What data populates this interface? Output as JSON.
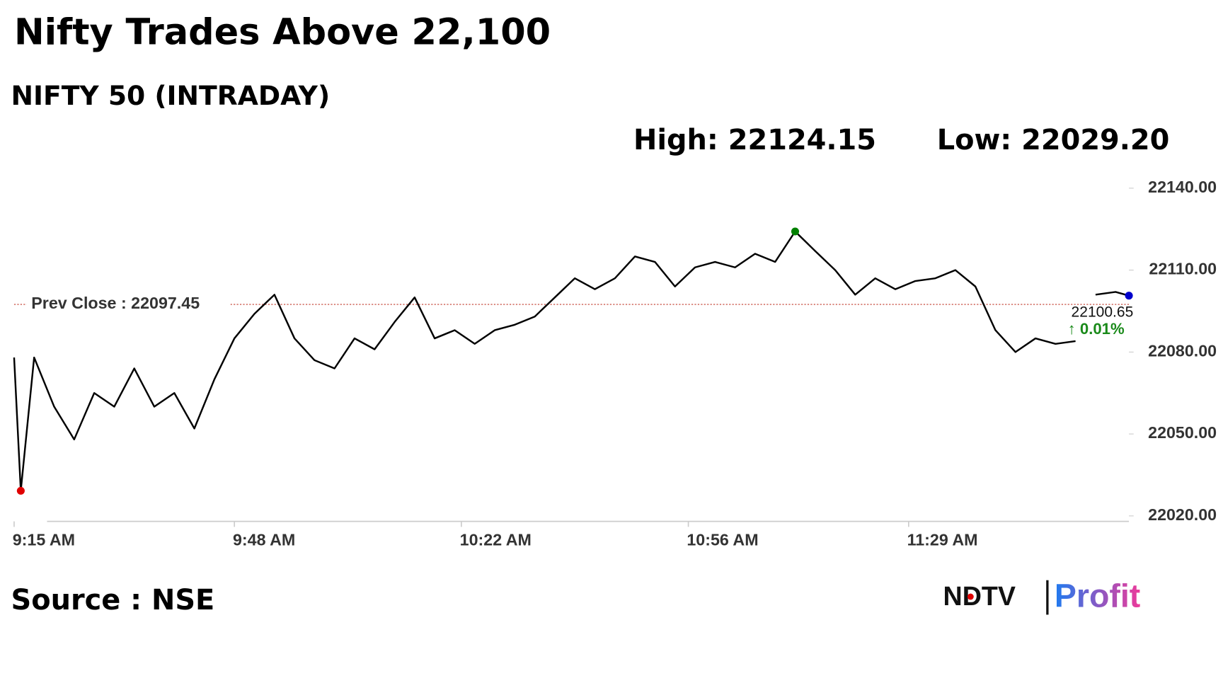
{
  "chart_data": {
    "type": "line",
    "title": "Nifty Trades Above 22,100",
    "subtitle": "NIFTY 50 (INTRADAY)",
    "high_text": "High: 22124.15",
    "low_text": "Low: 22029.20",
    "prev_close": {
      "value": 22097.45,
      "label": "Prev Close : 22097.45",
      "color": "#c0392b"
    },
    "change_text": "↑ 0.01%",
    "source": "Source : NSE",
    "logo": {
      "left": "NDTV",
      "right": "Profit"
    },
    "x": [
      "9:15 AM",
      "9:16 AM",
      "9:18 AM",
      "9:21 AM",
      "9:24 AM",
      "9:27 AM",
      "9:30 AM",
      "9:33 AM",
      "9:36 AM",
      "9:39 AM",
      "9:42 AM",
      "9:45 AM",
      "9:48 AM",
      "9:51 AM",
      "9:54 AM",
      "9:57 AM",
      "10:00 AM",
      "10:03 AM",
      "10:06 AM",
      "10:09 AM",
      "10:12 AM",
      "10:15 AM",
      "10:18 AM",
      "10:21 AM",
      "10:24 AM",
      "10:27 AM",
      "10:30 AM",
      "10:33 AM",
      "10:36 AM",
      "10:39 AM",
      "10:42 AM",
      "10:45 AM",
      "10:48 AM",
      "10:51 AM",
      "10:54 AM",
      "10:57 AM",
      "11:00 AM",
      "11:03 AM",
      "11:06 AM",
      "11:09 AM",
      "11:12 AM",
      "11:15 AM",
      "11:18 AM",
      "11:21 AM",
      "11:24 AM",
      "11:27 AM",
      "11:30 AM",
      "11:33 AM",
      "11:36 AM",
      "11:39 AM",
      "11:42 AM",
      "11:45 AM",
      "11:48 AM",
      "11:51 AM",
      "11:54 AM",
      "11:56 AM",
      "11:57 AM",
      "12:00 PM",
      "12:02 PM"
    ],
    "series": [
      {
        "name": "NIFTY 50",
        "color": "#000000",
        "values": [
          22078,
          22029.2,
          22078,
          22060,
          22048,
          22065,
          22060,
          22074,
          22060,
          22065,
          22052,
          22070,
          22085,
          22094,
          22101,
          22085,
          22077,
          22074,
          22085,
          22081,
          22091,
          22100,
          22085,
          22088,
          22083,
          22088,
          22090,
          22093,
          22100,
          22107,
          22103,
          22107,
          22115,
          22113,
          22104,
          22111,
          22113,
          22111,
          22116,
          22113,
          22124.15,
          22117,
          22110,
          22101,
          22107,
          22103,
          22106,
          22107,
          22110,
          22104,
          22088,
          22080,
          22085,
          22083,
          22084,
          null,
          22101,
          22102,
          22100.65
        ],
        "value_labels": {
          "58": "22100.65"
        },
        "low_color": "#e00000",
        "high_color": "#008000",
        "last_color": "#0000cc"
      }
    ],
    "xlim": [
      "9:15 AM",
      "12:02 PM"
    ],
    "xticks": [
      "9:15 AM",
      "9:48 AM",
      "10:22 AM",
      "10:56 AM",
      "11:29 AM"
    ],
    "ylim": [
      22020,
      22140
    ],
    "yticks": [
      {
        "value": 22020,
        "label": "22020.00"
      },
      {
        "value": 22050,
        "label": "22050.00"
      },
      {
        "value": 22080,
        "label": "22080.00"
      },
      {
        "value": 22110,
        "label": "22110.00"
      },
      {
        "value": 22140,
        "label": "22140.00"
      }
    ]
  }
}
